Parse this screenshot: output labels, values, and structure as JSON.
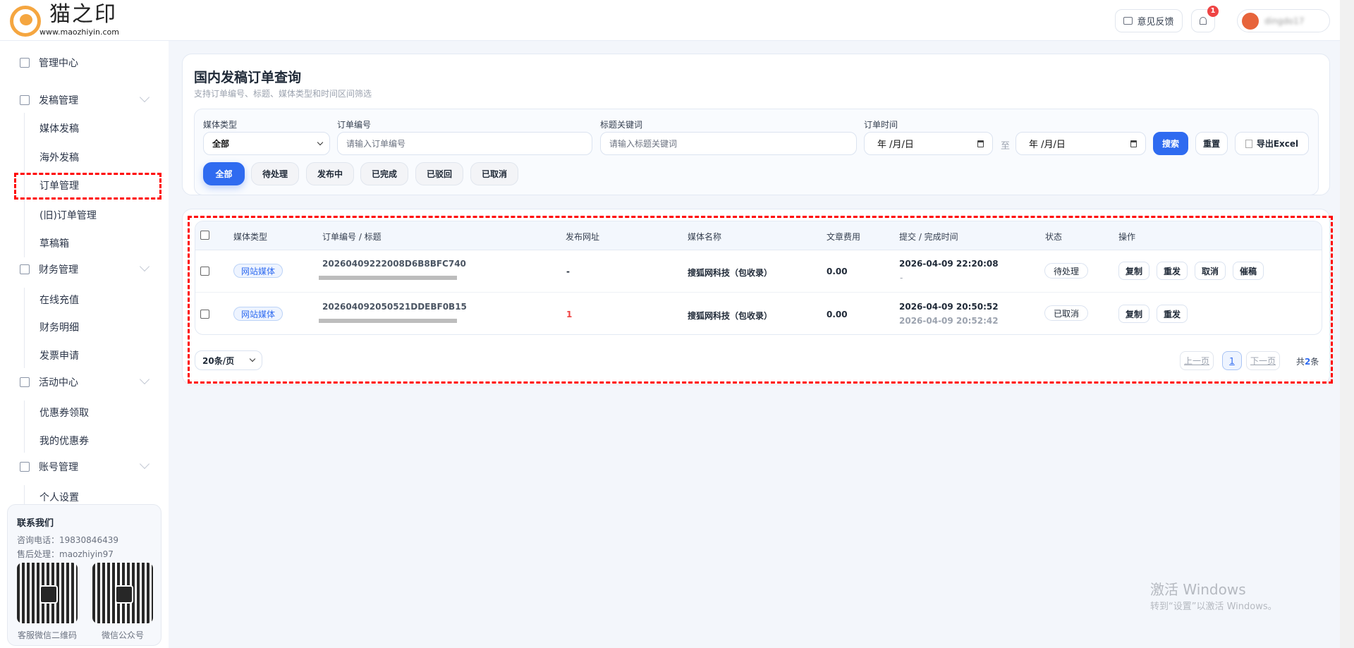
{
  "brand": {
    "name": "猫之印",
    "url": "www.maozhiyin.com",
    "accent": "#f5a640"
  },
  "header": {
    "feedback": "意见反馈",
    "notifications_count": "1",
    "username": "dingdo17"
  },
  "sidebar": {
    "items": [
      {
        "label": "管理中心",
        "icon": "home-icon"
      },
      {
        "label": "发稿管理",
        "icon": "clipboard-icon",
        "children": [
          "媒体发稿",
          "海外发稿",
          "订单管理",
          "(旧)订单管理",
          "草稿箱"
        ]
      },
      {
        "label": "财务管理",
        "icon": "wallet-icon",
        "children": [
          "在线充值",
          "财务明细",
          "发票申请"
        ]
      },
      {
        "label": "活动中心",
        "icon": "calendar-icon",
        "children": [
          "优惠券领取",
          "我的优惠券"
        ]
      },
      {
        "label": "账号管理",
        "icon": "document-icon",
        "children": [
          "个人设置"
        ]
      }
    ],
    "active": "订单管理",
    "contact": {
      "title": "联系我们",
      "phone": "咨询电话：19830846439",
      "aftersale": "售后处理：maozhiyin97",
      "qr1": "客服微信二维码",
      "qr2": "微信公众号"
    }
  },
  "page": {
    "title": "国内发稿订单查询",
    "subtitle": "支持订单编号、标题、媒体类型和时间区间筛选"
  },
  "filters": {
    "media_type_label": "媒体类型",
    "media_type_value": "全部",
    "order_no_label": "订单编号",
    "order_no_placeholder": "请输入订单编号",
    "title_label": "标题关键词",
    "title_placeholder": "请输入标题关键词",
    "time_label": "订单时间",
    "date_placeholder": "年 /月/日",
    "to": "至",
    "search": "搜索",
    "reset": "重置",
    "export": "导出Excel",
    "statuses": [
      "全部",
      "待处理",
      "发布中",
      "已完成",
      "已驳回",
      "已取消"
    ],
    "active_status": "全部",
    "primary_color": "#2f6bf0"
  },
  "table": {
    "columns": [
      "媒体类型",
      "订单编号 / 标题",
      "发布网址",
      "媒体名称",
      "文章费用",
      "提交 / 完成时间",
      "状态",
      "操作"
    ],
    "rows": [
      {
        "media_type": "网站媒体",
        "order_no": "20260409222008D6B8BFC740",
        "url": "-",
        "media_name": "搜狐网科技（包收录）",
        "fee": "0.00",
        "submit_time": "2026-04-09 22:20:08",
        "finish_time": "-",
        "status": "待处理",
        "actions": [
          "复制",
          "重发",
          "取消",
          "催稿"
        ]
      },
      {
        "media_type": "网站媒体",
        "order_no": "202604092050521DDEBF0B15",
        "url": "1",
        "media_name": "搜狐网科技（包收录）",
        "fee": "0.00",
        "submit_time": "2026-04-09 20:50:52",
        "finish_time": "2026-04-09 20:52:42",
        "status": "已取消",
        "actions": [
          "复制",
          "重发"
        ]
      }
    ]
  },
  "pagination": {
    "page_size": "20条/页",
    "prev": "上一页",
    "current": "1",
    "next": "下一页",
    "total_prefix": "共",
    "total": "2",
    "total_suffix": "条"
  },
  "watermark": {
    "line1": "激活 Windows",
    "line2": "转到“设置”以激活 Windows。"
  }
}
